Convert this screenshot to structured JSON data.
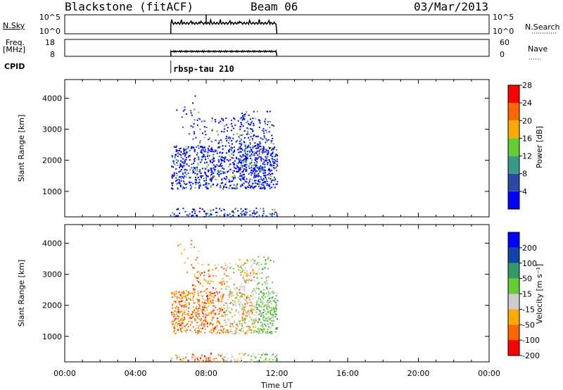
{
  "header": {
    "title": "Blackstone (fitACF)",
    "beam": "Beam 06",
    "date": "03/Mar/2013"
  },
  "strip_panels": {
    "nsky_label": "N.Sky",
    "nsearch_label": "N.Search",
    "freq_label": "Freq.",
    "freq_unit": "[MHz]",
    "nave_label": "Nave",
    "cpid_label": "CPID",
    "cpid_value": "rbsp-tau 210",
    "noise_ticks_left": [
      "10^5",
      "10^0"
    ],
    "noise_ticks_right": [
      "10^5",
      "10^0"
    ],
    "freq_ticks_left": [
      "18",
      "8"
    ],
    "nave_ticks_right": [
      "60",
      "0"
    ]
  },
  "chart_data": [
    {
      "type": "heatmap",
      "name": "power",
      "ylabel": "Slant Range [km]",
      "xlabel": "Time UT",
      "yticks": [
        1000,
        2000,
        3000,
        4000
      ],
      "ylim": [
        180,
        4600
      ],
      "xlim": [
        0,
        24
      ],
      "colorbar_label": "Power [dB]",
      "colorbar_ticks": [
        "4",
        "8",
        "12",
        "16",
        "20",
        "24",
        "28"
      ],
      "colors": [
        "#0000ff",
        "#2a4aa4",
        "#3a9a8a",
        "#66cc33",
        "#ffaa00",
        "#ff6600",
        "#ff0000"
      ],
      "data_time_range": [
        6.0,
        12.0
      ],
      "scatter_regions_km": [
        [
          1100,
          2600
        ],
        [
          2600,
          4200
        ],
        [
          180,
          500
        ]
      ]
    },
    {
      "type": "heatmap",
      "name": "velocity",
      "ylabel": "Slant Range [km]",
      "xlabel": "Time UT",
      "yticks": [
        1000,
        2000,
        3000,
        4000
      ],
      "ylim": [
        180,
        4600
      ],
      "xlim": [
        0,
        24
      ],
      "colorbar_label": "Velocity [m s⁻¹]",
      "colorbar_ticks": [
        "200",
        "100",
        "50",
        "15",
        "-15",
        "-50",
        "-100",
        "-200"
      ],
      "colors": [
        "#0000ff",
        "#1144aa",
        "#339966",
        "#66cc33",
        "#cccccc",
        "#ffaa00",
        "#ff6600",
        "#ff0000"
      ],
      "data_time_range": [
        6.0,
        12.0
      ]
    }
  ],
  "time_axis": {
    "ticks": [
      "00:00",
      "04:00",
      "08:00",
      "12:00",
      "16:00",
      "20:00",
      "00:00"
    ],
    "label": "Time UT"
  }
}
